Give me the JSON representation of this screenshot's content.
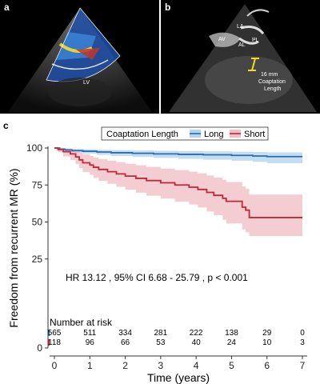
{
  "panels": {
    "a": {
      "label": "a",
      "annotations": [
        "LV"
      ]
    },
    "b": {
      "label": "b",
      "annotations": [
        "LA",
        "AV",
        "AL",
        "PL",
        "16 mm",
        "Coaptation",
        "Length"
      ]
    },
    "c": {
      "label": "c"
    }
  },
  "chart_data": {
    "type": "line",
    "subtype": "kaplan-meier",
    "ylabel": "Freedom from recurrent MR (%)",
    "xlabel": "Time (years)",
    "xlim": [
      0,
      7
    ],
    "ylim": [
      0,
      100
    ],
    "x_ticks": [
      0,
      1,
      2,
      3,
      4,
      5,
      6,
      7
    ],
    "y_ticks": [
      0,
      25,
      50,
      75,
      100
    ],
    "grid": false,
    "legend": {
      "title": "Coaptation Length",
      "position": "top-center",
      "entries": [
        "Long",
        "Short"
      ]
    },
    "annotation": "HR 13.12 , 95% CI  6.68 - 25.79 , p < 0.001",
    "colors": {
      "Long": "#2b6cb0",
      "Short": "#c0283a",
      "Long_ci": "#b4d4ef",
      "Short_ci": "#f0c0c6"
    },
    "series": [
      {
        "name": "Long",
        "steps": [
          [
            0,
            100
          ],
          [
            0.15,
            99.2
          ],
          [
            0.3,
            98.7
          ],
          [
            0.5,
            98.2
          ],
          [
            0.8,
            97.8
          ],
          [
            1.2,
            97.3
          ],
          [
            1.6,
            96.8
          ],
          [
            2.2,
            96.4
          ],
          [
            2.8,
            96.0
          ],
          [
            3.5,
            95.7
          ],
          [
            4.2,
            95.4
          ],
          [
            5.0,
            95.0
          ],
          [
            5.6,
            94.6
          ],
          [
            6.0,
            94.2
          ],
          [
            7.0,
            94.2
          ]
        ],
        "ci_lower": [
          [
            0,
            100
          ],
          [
            0.15,
            98.4
          ],
          [
            0.3,
            97.6
          ],
          [
            0.5,
            96.9
          ],
          [
            0.8,
            96.2
          ],
          [
            1.2,
            95.4
          ],
          [
            1.6,
            94.6
          ],
          [
            2.2,
            94.0
          ],
          [
            2.8,
            93.3
          ],
          [
            3.5,
            92.7
          ],
          [
            4.2,
            92.1
          ],
          [
            5.0,
            91.4
          ],
          [
            5.6,
            90.6
          ],
          [
            6.0,
            89.7
          ],
          [
            7.0,
            89.7
          ]
        ],
        "ci_upper": [
          [
            0,
            100
          ],
          [
            0.15,
            100
          ],
          [
            0.3,
            99.6
          ],
          [
            0.5,
            99.3
          ],
          [
            0.8,
            99.1
          ],
          [
            1.2,
            98.8
          ],
          [
            1.6,
            98.5
          ],
          [
            2.2,
            98.3
          ],
          [
            2.8,
            98.1
          ],
          [
            3.5,
            97.9
          ],
          [
            4.2,
            97.7
          ],
          [
            5.0,
            97.5
          ],
          [
            5.6,
            97.3
          ],
          [
            6.0,
            97.0
          ],
          [
            7.0,
            97.0
          ]
        ]
      },
      {
        "name": "Short",
        "steps": [
          [
            0,
            100
          ],
          [
            0.1,
            99.0
          ],
          [
            0.25,
            97.5
          ],
          [
            0.45,
            96.0
          ],
          [
            0.6,
            94.0
          ],
          [
            0.7,
            92.0
          ],
          [
            0.8,
            90.0
          ],
          [
            1.0,
            88.5
          ],
          [
            1.1,
            87.0
          ],
          [
            1.25,
            85.5
          ],
          [
            1.5,
            84.0
          ],
          [
            1.75,
            82.5
          ],
          [
            2.0,
            81.0
          ],
          [
            2.3,
            79.5
          ],
          [
            2.6,
            78.0
          ],
          [
            3.0,
            76.5
          ],
          [
            3.4,
            75.0
          ],
          [
            3.8,
            73.5
          ],
          [
            4.05,
            72.0
          ],
          [
            4.3,
            70.0
          ],
          [
            4.5,
            68.0
          ],
          [
            4.75,
            66.0
          ],
          [
            4.85,
            64.0
          ],
          [
            5.3,
            60.0
          ],
          [
            5.4,
            58.0
          ],
          [
            5.5,
            53.0
          ],
          [
            7.0,
            53.0
          ]
        ],
        "ci_lower": [
          [
            0,
            100
          ],
          [
            0.1,
            97.0
          ],
          [
            0.25,
            94.3
          ],
          [
            0.45,
            91.9
          ],
          [
            0.6,
            89.1
          ],
          [
            0.7,
            86.4
          ],
          [
            0.8,
            83.8
          ],
          [
            1.0,
            81.8
          ],
          [
            1.1,
            79.8
          ],
          [
            1.25,
            77.8
          ],
          [
            1.5,
            75.8
          ],
          [
            1.75,
            73.8
          ],
          [
            2.0,
            71.8
          ],
          [
            2.3,
            69.8
          ],
          [
            2.6,
            67.8
          ],
          [
            3.0,
            65.8
          ],
          [
            3.4,
            63.8
          ],
          [
            3.8,
            61.8
          ],
          [
            4.05,
            59.8
          ],
          [
            4.3,
            57.0
          ],
          [
            4.5,
            54.5
          ],
          [
            4.75,
            51.5
          ],
          [
            4.85,
            49.0
          ],
          [
            5.3,
            45.0
          ],
          [
            5.4,
            43.0
          ],
          [
            5.5,
            40.5
          ],
          [
            7.0,
            40.5
          ]
        ],
        "ci_upper": [
          [
            0,
            100
          ],
          [
            0.1,
            100
          ],
          [
            0.25,
            99.7
          ],
          [
            0.45,
            99.0
          ],
          [
            0.6,
            98.0
          ],
          [
            0.7,
            96.9
          ],
          [
            0.8,
            95.7
          ],
          [
            1.0,
            94.6
          ],
          [
            1.1,
            93.6
          ],
          [
            1.25,
            92.5
          ],
          [
            1.5,
            91.4
          ],
          [
            1.75,
            90.4
          ],
          [
            2.0,
            89.3
          ],
          [
            2.3,
            88.3
          ],
          [
            2.6,
            87.2
          ],
          [
            3.0,
            86.1
          ],
          [
            3.4,
            85.1
          ],
          [
            3.8,
            84.0
          ],
          [
            4.05,
            82.9
          ],
          [
            4.3,
            81.4
          ],
          [
            4.5,
            80.0
          ],
          [
            4.75,
            78.5
          ],
          [
            4.85,
            77.0
          ],
          [
            5.3,
            74.0
          ],
          [
            5.4,
            72.5
          ],
          [
            5.5,
            68.5
          ],
          [
            7.0,
            68.5
          ]
        ]
      }
    ],
    "risk_table": {
      "title": "Number at risk",
      "times": [
        0,
        1,
        2,
        3,
        4,
        5,
        6,
        7
      ],
      "rows": [
        {
          "name": "Long",
          "values": [
            "565",
            "511",
            "334",
            "281",
            "222",
            "138",
            "29",
            "0"
          ]
        },
        {
          "name": "Short",
          "values": [
            "118",
            "96",
            "66",
            "53",
            "40",
            "24",
            "10",
            "3"
          ]
        }
      ]
    }
  }
}
